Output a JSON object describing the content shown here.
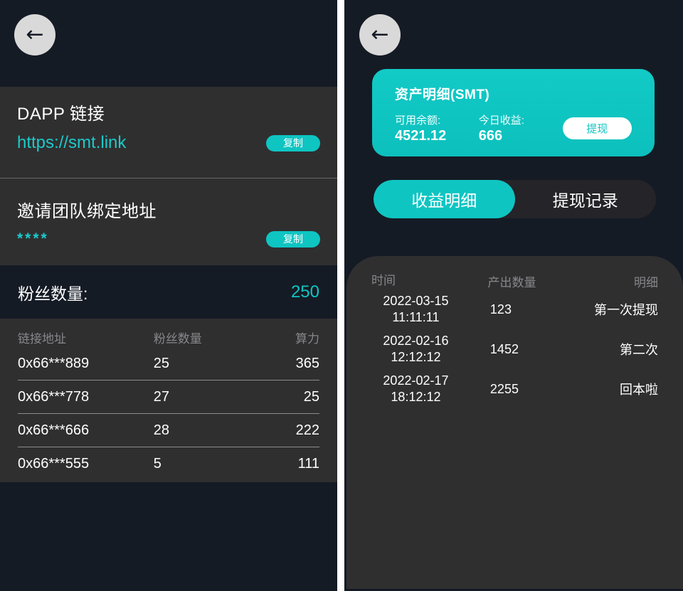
{
  "colors": {
    "teal": "#0fc5c2",
    "teal-text": "#1ec9c9",
    "navy": "#151b25",
    "panel": "#2f2f30",
    "tabbg": "#242429",
    "muted": "#87878b"
  },
  "icons": {
    "back": "←"
  },
  "left": {
    "dapp": {
      "title": "DAPP 链接",
      "link": "https://smt.link",
      "copy_label": "复制"
    },
    "invite": {
      "title": "邀请团队绑定地址",
      "masked_value": "****",
      "copy_label": "复制"
    },
    "fans": {
      "label": "粉丝数量:",
      "value": "250"
    },
    "table": {
      "headers": [
        "链接地址",
        "粉丝数量",
        "算力"
      ],
      "rows": [
        {
          "address": "0x66***889",
          "fans": "25",
          "power": "365"
        },
        {
          "address": "0x66***778",
          "fans": "27",
          "power": "25"
        },
        {
          "address": "0x66***666",
          "fans": "28",
          "power": "222"
        },
        {
          "address": "0x66***555",
          "fans": "5",
          "power": "111"
        }
      ]
    }
  },
  "right": {
    "card": {
      "title": "资产明细(SMT)",
      "balance_label": "可用余额:",
      "balance_value": "4521.12",
      "today_label": "今日收益:",
      "today_value": "666",
      "withdraw_label": "提现"
    },
    "tabs": {
      "income": "收益明细",
      "withdraw": "提现记录"
    },
    "table": {
      "headers": [
        "时间",
        "产出数量",
        "明细"
      ],
      "rows": [
        {
          "date": "2022-03-15",
          "time": "11:11:11",
          "amount": "123",
          "detail": "第一次提现"
        },
        {
          "date": "2022-02-16",
          "time": "12:12:12",
          "amount": "1452",
          "detail": "第二次"
        },
        {
          "date": "2022-02-17",
          "time": "18:12:12",
          "amount": "2255",
          "detail": "回本啦"
        }
      ]
    }
  }
}
